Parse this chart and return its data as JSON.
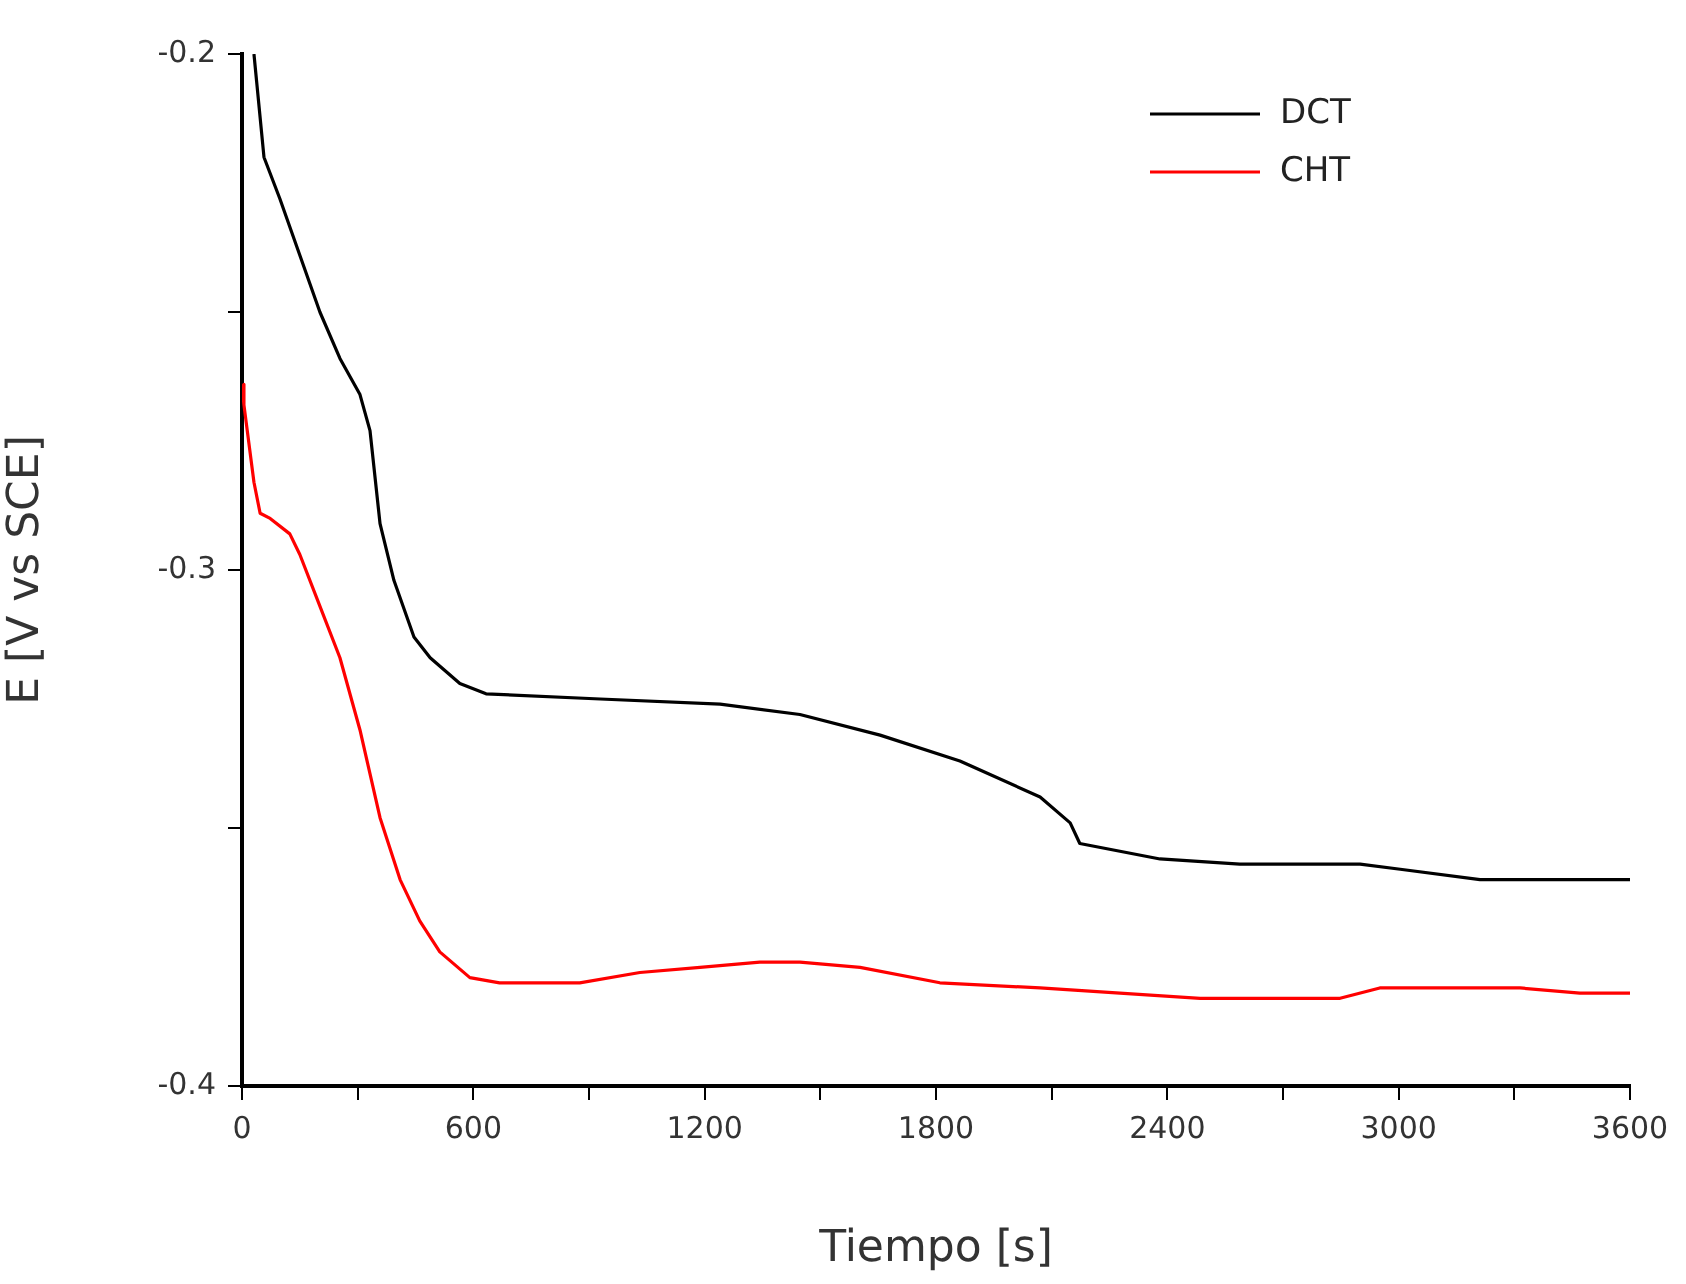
{
  "chart_data": {
    "type": "line",
    "xlabel": "Tiempo [s]",
    "ylabel": "E [V vs SCE]",
    "xlim": [
      0,
      3600
    ],
    "xticks": [
      0,
      {
        "value": 300,
        "label": null
      },
      600,
      {
        "value": 900,
        "label": null
      },
      1200,
      {
        "value": 1500,
        "label": null
      },
      1800,
      {
        "value": 2100,
        "label": null
      },
      2400,
      {
        "value": 2700,
        "label": null
      },
      3000,
      {
        "value": 3300,
        "label": null
      },
      3600
    ],
    "ylim": [
      -0.4,
      -0.2
    ],
    "yticks": [
      -0.4,
      {
        "value": -0.35,
        "label": null
      },
      -0.3,
      {
        "value": -0.25,
        "label": null
      },
      -0.2
    ],
    "grid": false,
    "legend": "top right",
    "marker": "none",
    "line_style": "solid",
    "series": [
      {
        "name": "DCT",
        "color": "#000000",
        "x": [
          31,
          57,
          98,
          150,
          202,
          254,
          306,
          332,
          358,
          394,
          446,
          488,
          565,
          633,
          929,
          1240,
          1447,
          1655,
          1862,
          2070,
          2148,
          2173,
          2381,
          2588,
          2900,
          3004,
          3211,
          3419,
          3600
        ],
        "values": [
          -0.2,
          -0.22,
          -0.228,
          -0.239,
          -0.25,
          -0.259,
          -0.266,
          -0.273,
          -0.291,
          -0.302,
          -0.313,
          -0.317,
          -0.322,
          -0.324,
          -0.325,
          -0.326,
          -0.328,
          -0.332,
          -0.337,
          -0.344,
          -0.349,
          -0.353,
          -0.356,
          -0.357,
          -0.357,
          -0.358,
          -0.36,
          -0.36,
          -0.36
        ]
      },
      {
        "name": "CHT",
        "color": "#ff0000",
        "x": [
          0,
          5,
          31,
          47,
          73,
          124,
          150,
          202,
          254,
          306,
          358,
          410,
          461,
          513,
          591,
          668,
          876,
          1032,
          1188,
          1343,
          1447,
          1603,
          1810,
          2070,
          2277,
          2485,
          2848,
          2951,
          3107,
          3315,
          3470,
          3600
        ],
        "values": [
          -0.264,
          -0.268,
          -0.283,
          -0.289,
          -0.29,
          -0.293,
          -0.297,
          -0.307,
          -0.317,
          -0.331,
          -0.348,
          -0.36,
          -0.368,
          -0.374,
          -0.379,
          -0.38,
          -0.38,
          -0.378,
          -0.377,
          -0.376,
          -0.376,
          -0.377,
          -0.38,
          -0.381,
          -0.382,
          -0.383,
          -0.383,
          -0.381,
          -0.381,
          -0.381,
          -0.382,
          -0.382
        ]
      }
    ]
  }
}
